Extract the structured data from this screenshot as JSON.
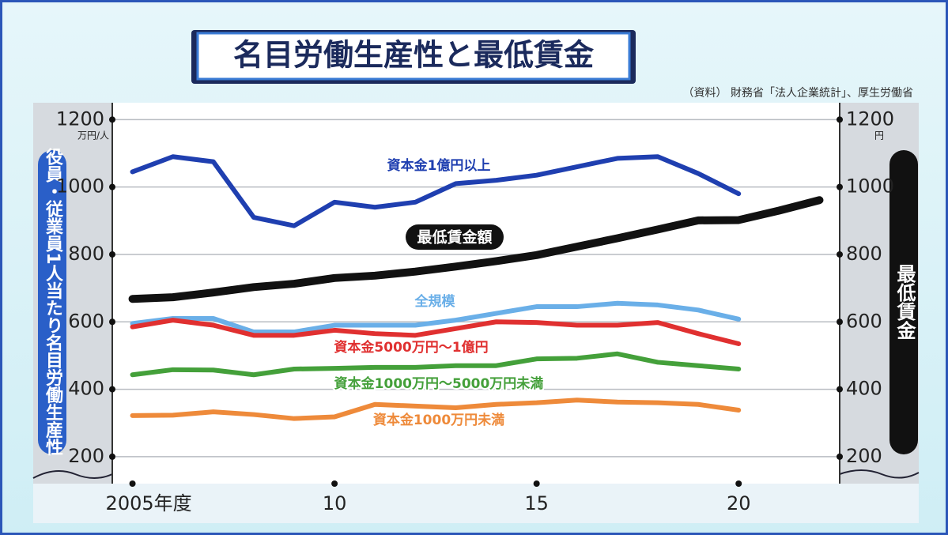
{
  "chart_data": {
    "type": "line",
    "title": "名目労働生産性と最低賃金",
    "source": "（資料） 財務省「法人企業統計」、厚生労働省",
    "ylabel": "役員・従業員1人当たり名目労働生産性",
    "yunit": "万円/人",
    "y2label": "最低賃金",
    "y2unit": "円",
    "x": [
      2005,
      2006,
      2007,
      2008,
      2009,
      2010,
      2011,
      2012,
      2013,
      2014,
      2015,
      2016,
      2017,
      2018,
      2019,
      2020,
      2021,
      2022
    ],
    "xlim": [
      2004.5,
      2022.5
    ],
    "xticks": [
      {
        "value": 2005,
        "label": "2005年度"
      },
      {
        "value": 2010,
        "label": "10"
      },
      {
        "value": 2015,
        "label": "15"
      },
      {
        "value": 2020,
        "label": "20"
      }
    ],
    "ylim": [
      120,
      1250
    ],
    "yticks": [
      200,
      400,
      600,
      800,
      1000,
      1200
    ],
    "y2lim": [
      120,
      1250
    ],
    "y2ticks": [
      200,
      400,
      600,
      800,
      1000,
      1200
    ],
    "grid": true,
    "series": [
      {
        "name": "資本金1億円以上",
        "color": "#1f3fb0",
        "values": [
          1045,
          1090,
          1075,
          910,
          885,
          955,
          940,
          955,
          1010,
          1020,
          1035,
          1060,
          1085,
          1090,
          1040,
          980,
          null,
          null
        ]
      },
      {
        "name": "最低賃金額",
        "color": "#111111",
        "axis": "y2",
        "values": [
          668,
          673,
          687,
          703,
          713,
          730,
          737,
          749,
          764,
          780,
          798,
          823,
          848,
          874,
          901,
          902,
          930,
          961
        ]
      },
      {
        "name": "全規模",
        "color": "#6aafe8",
        "values": [
          595,
          610,
          610,
          570,
          570,
          590,
          590,
          590,
          605,
          625,
          645,
          645,
          655,
          650,
          635,
          608,
          null,
          null
        ]
      },
      {
        "name": "資本金5000万円～1億円",
        "color": "#e03030",
        "values": [
          585,
          605,
          590,
          560,
          560,
          575,
          565,
          560,
          580,
          600,
          598,
          590,
          590,
          598,
          565,
          535,
          null,
          null
        ]
      },
      {
        "name": "資本金1000万円～5000万円未満",
        "color": "#44a03a",
        "values": [
          443,
          458,
          457,
          443,
          460,
          462,
          465,
          465,
          470,
          470,
          490,
          492,
          505,
          480,
          470,
          460,
          null,
          null
        ]
      },
      {
        "name": "資本金1000万円未満",
        "color": "#ee8a3a",
        "values": [
          322,
          323,
          333,
          325,
          313,
          318,
          355,
          350,
          345,
          355,
          360,
          368,
          362,
          360,
          355,
          338,
          null,
          null
        ]
      }
    ]
  }
}
